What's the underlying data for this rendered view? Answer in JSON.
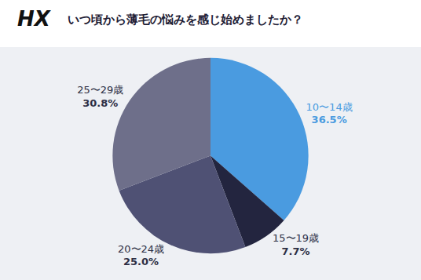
{
  "chart_data": {
    "type": "pie",
    "title": "いつ頃から薄毛の悩みを感じ始めましたか？",
    "categories": [
      "10〜14歳",
      "15〜19歳",
      "20〜24歳",
      "25〜29歳"
    ],
    "values": [
      36.5,
      7.7,
      25.0,
      30.8
    ],
    "value_labels": [
      "36.5%",
      "7.7%",
      "25.0%",
      "30.8%"
    ],
    "colors": [
      "#4a9be0",
      "#23253f",
      "#4f5174",
      "#6e6f8a"
    ],
    "data_labels": true
  },
  "logo": "HX"
}
